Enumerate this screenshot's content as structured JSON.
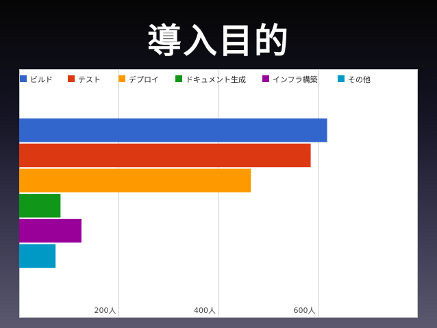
{
  "slide": {
    "title": "導入目的"
  },
  "chart_data": {
    "type": "bar",
    "orientation": "horizontal",
    "title": "",
    "xlabel": "",
    "ylabel": "",
    "series": [
      {
        "name": "ビルド",
        "value": 618,
        "color": "#3366cc"
      },
      {
        "name": "テスト",
        "value": 585,
        "color": "#dc3912"
      },
      {
        "name": "デプロイ",
        "value": 465,
        "color": "#ff9900"
      },
      {
        "name": "ドキュメント生成",
        "value": 83,
        "color": "#109618"
      },
      {
        "name": "インフラ構築",
        "value": 125,
        "color": "#990099"
      },
      {
        "name": "その他",
        "value": 73,
        "color": "#0099c6"
      }
    ],
    "xlim": [
      0,
      800
    ],
    "ticks": [
      {
        "value": 200,
        "label": "200人"
      },
      {
        "value": 400,
        "label": "400人"
      },
      {
        "value": 600,
        "label": "600人"
      }
    ],
    "grid": true,
    "legend": "top"
  }
}
